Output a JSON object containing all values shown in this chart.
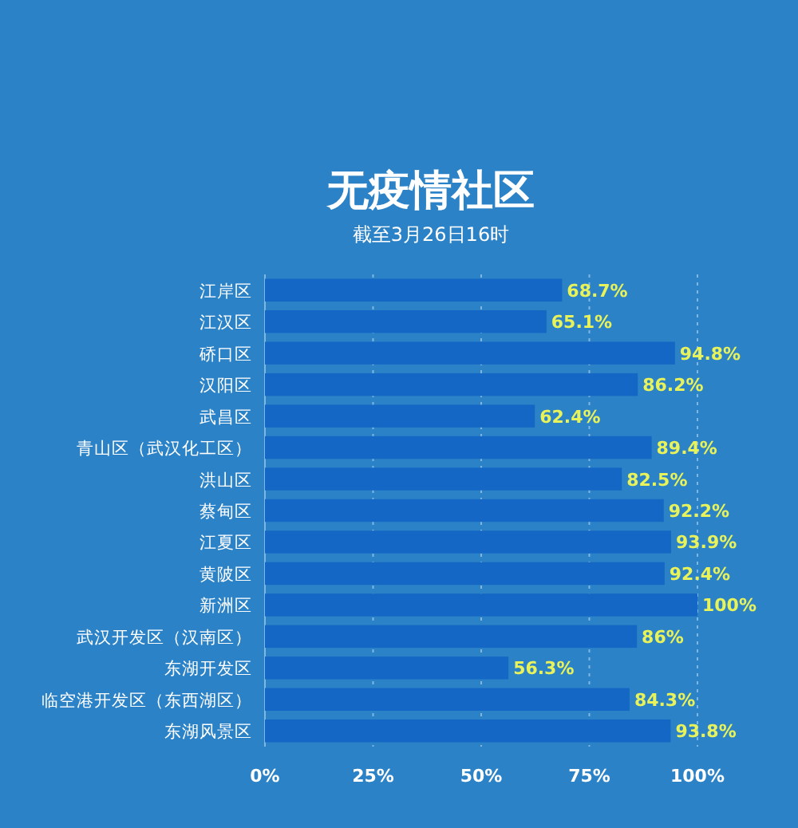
{
  "chart_data": {
    "type": "bar",
    "orientation": "horizontal",
    "title": "无疫情社区",
    "subtitle": "截至3月26日16时",
    "categories": [
      "江岸区",
      "江汉区",
      "硚口区",
      "汉阳区",
      "武昌区",
      "青山区（武汉化工区）",
      "洪山区",
      "蔡甸区",
      "江夏区",
      "黄陂区",
      "新洲区",
      "武汉开发区（汉南区）",
      "东湖开发区",
      "临空港开发区（东西湖区）",
      "东湖风景区"
    ],
    "values": [
      68.7,
      65.1,
      94.8,
      86.2,
      62.4,
      89.4,
      82.5,
      92.2,
      93.9,
      92.4,
      100,
      86,
      56.3,
      84.3,
      93.8
    ],
    "value_labels": [
      "68.7%",
      "65.1%",
      "94.8%",
      "86.2%",
      "62.4%",
      "89.4%",
      "82.5%",
      "92.2%",
      "93.9%",
      "92.4%",
      "100%",
      "86%",
      "56.3%",
      "84.3%",
      "93.8%"
    ],
    "color": "#1467c4",
    "xlim": [
      0,
      100
    ],
    "xticks": [
      {
        "value": 0,
        "label": "0%"
      },
      {
        "value": 25,
        "label": "25%"
      },
      {
        "value": 50,
        "label": "50%"
      },
      {
        "value": 75,
        "label": "75%"
      },
      {
        "value": 100,
        "label": "100%"
      }
    ],
    "grid": "x"
  }
}
